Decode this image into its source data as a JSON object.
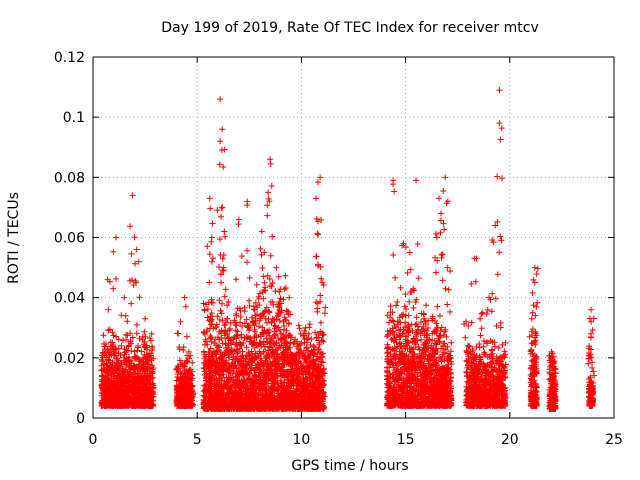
{
  "chart_data": {
    "type": "scatter",
    "title": "Day 199 of 2019, Rate Of TEC Index for receiver mtcv",
    "xlabel": "GPS time / hours",
    "ylabel": "ROTI / TECUs",
    "xlim": [
      0,
      25
    ],
    "ylim": [
      0,
      0.12
    ],
    "x_ticks": [
      0,
      5,
      10,
      15,
      20,
      25
    ],
    "x_tick_labels": [
      "0",
      "5",
      "10",
      "15",
      "20",
      "25"
    ],
    "y_ticks": [
      0,
      0.02,
      0.04,
      0.06,
      0.08,
      0.1,
      0.12
    ],
    "y_tick_labels": [
      "0",
      "0.02",
      "0.04",
      "0.06",
      "0.08",
      "0.1",
      "0.12"
    ],
    "grid": true,
    "legend": "none",
    "marker": "plus",
    "color": "#ff0000",
    "series": [
      {
        "clusters": [
          {
            "x": [
              0.4,
              2.9
            ],
            "y": [
              0.004,
              0.022
            ],
            "outliers": [
              [
                0.7,
                0.046
              ],
              [
                1.1,
                0.06
              ],
              [
                1.9,
                0.074
              ],
              [
                2.1,
                0.056
              ],
              [
                1.5,
                0.04
              ],
              [
                2.5,
                0.033
              ]
            ]
          },
          {
            "x": [
              4.0,
              4.8
            ],
            "y": [
              0.004,
              0.015
            ],
            "outliers": [
              [
                4.4,
                0.04
              ],
              [
                4.2,
                0.032
              ],
              [
                4.6,
                0.022
              ]
            ]
          },
          {
            "x": [
              5.3,
              7.7
            ],
            "y": [
              0.003,
              0.03
            ],
            "outliers": [
              [
                6.1,
                0.106
              ],
              [
                6.1,
                0.092
              ],
              [
                6.2,
                0.096
              ],
              [
                5.6,
                0.073
              ],
              [
                6.3,
                0.062
              ],
              [
                5.7,
                0.06
              ],
              [
                7.0,
                0.066
              ],
              [
                7.4,
                0.072
              ]
            ]
          },
          {
            "x": [
              7.7,
              9.5
            ],
            "y": [
              0.003,
              0.035
            ],
            "outliers": [
              [
                8.5,
                0.086
              ],
              [
                8.4,
                0.075
              ],
              [
                8.1,
                0.062
              ],
              [
                8.8,
                0.05
              ]
            ]
          },
          {
            "x": [
              9.5,
              11.1
            ],
            "y": [
              0.003,
              0.025
            ],
            "outliers": [
              [
                10.9,
                0.08
              ],
              [
                10.7,
                0.073
              ],
              [
                10.8,
                0.061
              ],
              [
                10.2,
                0.03
              ],
              [
                11.0,
                0.045
              ]
            ]
          },
          {
            "x": [
              14.1,
              16.3
            ],
            "y": [
              0.004,
              0.03
            ],
            "outliers": [
              [
                14.4,
                0.079
              ],
              [
                15.5,
                0.079
              ],
              [
                16.5,
                0.06
              ],
              [
                14.9,
                0.058
              ],
              [
                15.2,
                0.055
              ]
            ]
          },
          {
            "x": [
              16.3,
              17.2
            ],
            "y": [
              0.004,
              0.025
            ],
            "outliers": [
              [
                16.9,
                0.08
              ],
              [
                16.7,
                0.068
              ],
              [
                17.0,
                0.05
              ],
              [
                16.6,
                0.073
              ]
            ]
          },
          {
            "x": [
              17.9,
              19.8
            ],
            "y": [
              0.004,
              0.02
            ],
            "outliers": [
              [
                19.5,
                0.109
              ],
              [
                19.5,
                0.098
              ],
              [
                19.3,
                0.064
              ],
              [
                18.3,
                0.053
              ],
              [
                19.0,
                0.04
              ],
              [
                18.7,
                0.035
              ],
              [
                17.9,
                0.032
              ]
            ]
          },
          {
            "x": [
              21.0,
              21.3
            ],
            "y": [
              0.004,
              0.022
            ],
            "outliers": [
              [
                21.2,
                0.05
              ],
              [
                21.2,
                0.045
              ],
              [
                21.1,
                0.035
              ]
            ]
          },
          {
            "x": [
              21.9,
              22.2
            ],
            "y": [
              0.003,
              0.018
            ],
            "outliers": [
              [
                22.0,
                0.022
              ]
            ]
          },
          {
            "x": [
              23.8,
              24.0
            ],
            "y": [
              0.004,
              0.012
            ],
            "outliers": [
              [
                23.9,
                0.036
              ],
              [
                23.9,
                0.032
              ],
              [
                23.9,
                0.028
              ],
              [
                23.9,
                0.02
              ]
            ]
          }
        ]
      }
    ]
  }
}
